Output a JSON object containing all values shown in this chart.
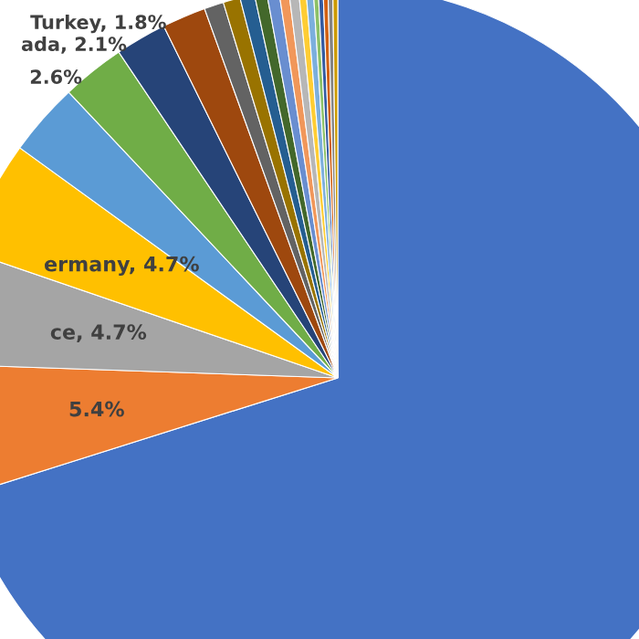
{
  "chart_data": {
    "type": "pie",
    "categories": [
      null,
      null,
      null,
      null,
      null,
      null,
      null,
      null,
      null,
      null,
      null,
      null,
      null,
      null,
      null,
      null,
      null,
      null,
      null,
      null,
      null,
      null
    ],
    "values": [
      70.0,
      5.4,
      4.7,
      4.7,
      3.0,
      2.6,
      2.1,
      1.8,
      0.8,
      0.7,
      0.6,
      0.5,
      0.5,
      0.4,
      0.4,
      0.3,
      0.3,
      0.2,
      0.2,
      0.2,
      0.2,
      0.2
    ],
    "colors": [
      "#4472c4",
      "#ed7d31",
      "#a5a5a5",
      "#ffc000",
      "#5b9bd5",
      "#70ad47",
      "#264478",
      "#9e480e",
      "#636363",
      "#997300",
      "#255e91",
      "#43682b",
      "#698ed0",
      "#f1975a",
      "#b7b7b7",
      "#ffcd33",
      "#7cafdd",
      "#8cc168",
      "#335aa1",
      "#d26012",
      "#848484",
      "#cc9a00"
    ],
    "value_labels": [
      null,
      "5.4%",
      "ce, 4.7%",
      "ermany, 4.7%",
      null,
      "2.6%",
      "ada, 2.1%",
      "Turkey, 1.8%",
      null,
      null,
      null,
      null,
      null,
      null,
      null,
      null,
      null,
      null,
      null,
      null,
      null,
      null
    ]
  }
}
